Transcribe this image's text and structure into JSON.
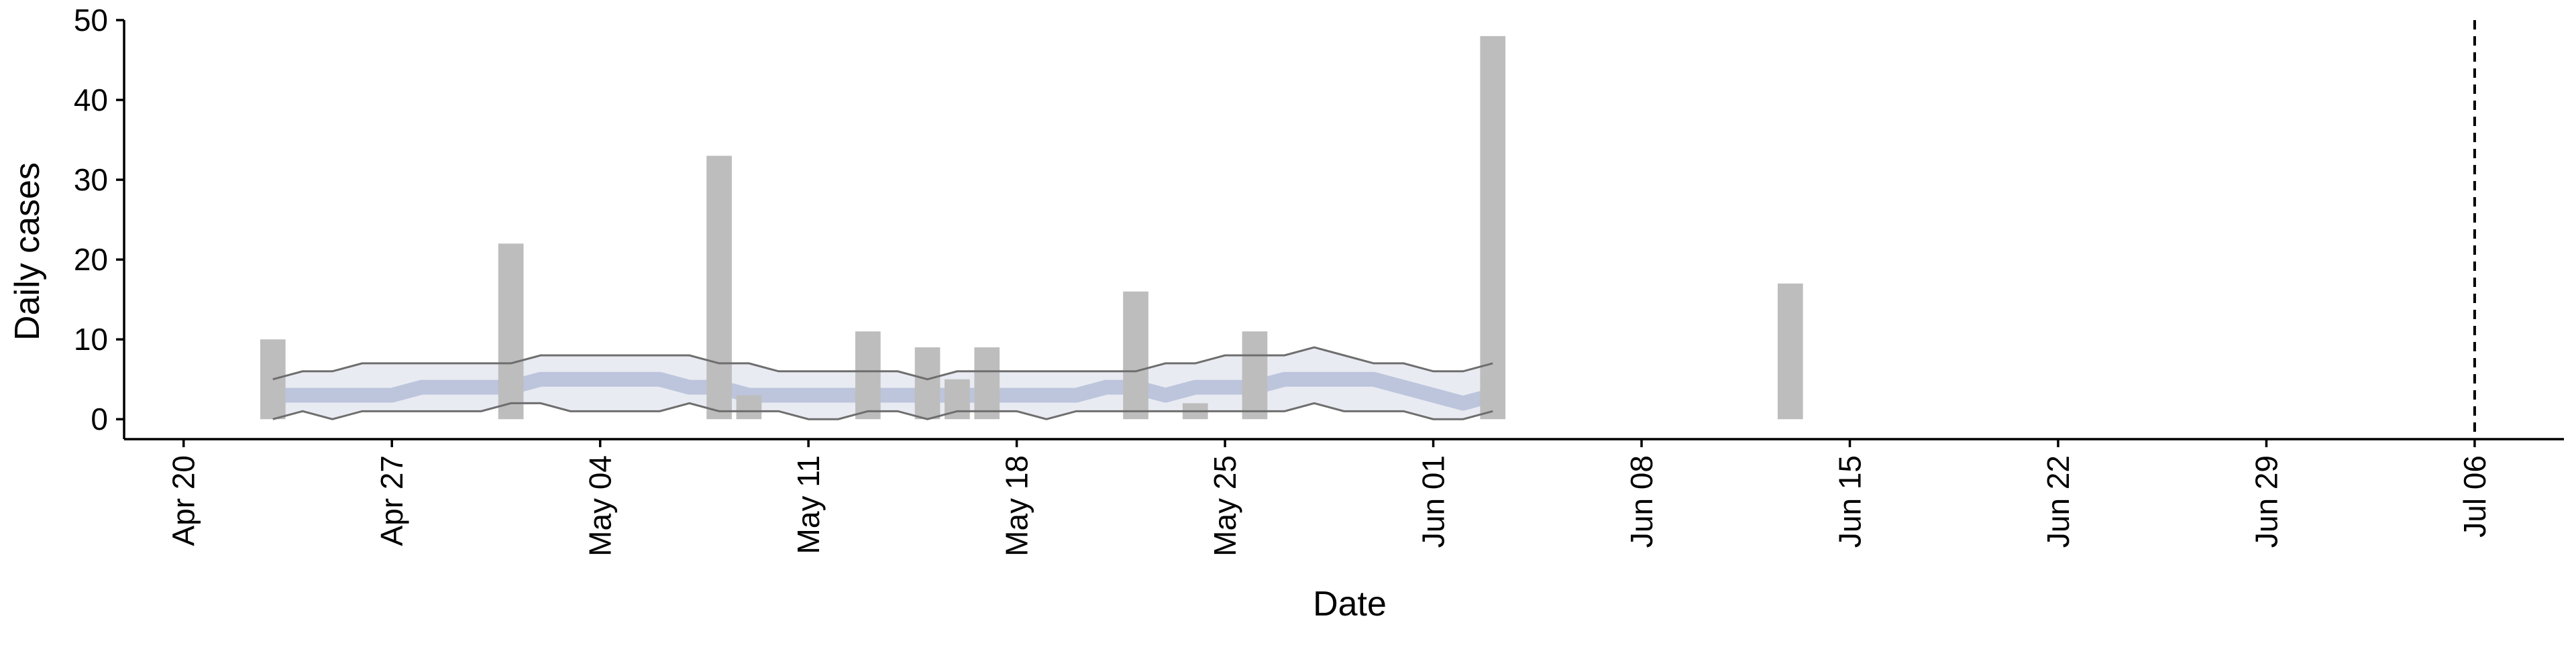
{
  "chart_data": {
    "type": "bar",
    "xlabel": "Date",
    "ylabel": "Daily cases",
    "x_axis": {
      "type": "date",
      "range": [
        "2020-04-18",
        "2020-07-09"
      ],
      "ticks": [
        {
          "date": "2020-04-20",
          "label": "Apr 20"
        },
        {
          "date": "2020-04-27",
          "label": "Apr 27"
        },
        {
          "date": "2020-05-04",
          "label": "May 04"
        },
        {
          "date": "2020-05-11",
          "label": "May 11"
        },
        {
          "date": "2020-05-18",
          "label": "May 18"
        },
        {
          "date": "2020-05-25",
          "label": "May 25"
        },
        {
          "date": "2020-06-01",
          "label": "Jun 01"
        },
        {
          "date": "2020-06-08",
          "label": "Jun 08"
        },
        {
          "date": "2020-06-15",
          "label": "Jun 15"
        },
        {
          "date": "2020-06-22",
          "label": "Jun 22"
        },
        {
          "date": "2020-06-29",
          "label": "Jun 29"
        },
        {
          "date": "2020-07-06",
          "label": "Jul 06"
        }
      ]
    },
    "y_axis": {
      "range": [
        -2.5,
        50
      ],
      "ticks": [
        0,
        10,
        20,
        30,
        40,
        50
      ]
    },
    "bars": {
      "color": "#bdbdbd",
      "points": [
        {
          "date": "2020-04-23",
          "value": 10
        },
        {
          "date": "2020-05-01",
          "value": 22
        },
        {
          "date": "2020-05-08",
          "value": 33
        },
        {
          "date": "2020-05-09",
          "value": 3
        },
        {
          "date": "2020-05-13",
          "value": 11
        },
        {
          "date": "2020-05-15",
          "value": 9
        },
        {
          "date": "2020-05-16",
          "value": 5
        },
        {
          "date": "2020-05-17",
          "value": 9
        },
        {
          "date": "2020-05-22",
          "value": 16
        },
        {
          "date": "2020-05-24",
          "value": 2
        },
        {
          "date": "2020-05-26",
          "value": 11
        },
        {
          "date": "2020-06-03",
          "value": 48
        },
        {
          "date": "2020-06-13",
          "value": 17
        }
      ]
    },
    "prediction_band": {
      "fill_color": "#e9ebf2",
      "median_color": "#bcc5dc",
      "bound_color": "#6e6e6e",
      "dates": [
        "2020-04-23",
        "2020-04-24",
        "2020-04-25",
        "2020-04-26",
        "2020-04-27",
        "2020-04-28",
        "2020-04-29",
        "2020-04-30",
        "2020-05-01",
        "2020-05-02",
        "2020-05-03",
        "2020-05-04",
        "2020-05-05",
        "2020-05-06",
        "2020-05-07",
        "2020-05-08",
        "2020-05-09",
        "2020-05-10",
        "2020-05-11",
        "2020-05-12",
        "2020-05-13",
        "2020-05-14",
        "2020-05-15",
        "2020-05-16",
        "2020-05-17",
        "2020-05-18",
        "2020-05-19",
        "2020-05-20",
        "2020-05-21",
        "2020-05-22",
        "2020-05-23",
        "2020-05-24",
        "2020-05-25",
        "2020-05-26",
        "2020-05-27",
        "2020-05-28",
        "2020-05-29",
        "2020-05-30",
        "2020-05-31",
        "2020-06-01",
        "2020-06-02",
        "2020-06-03"
      ],
      "upper": [
        5,
        6,
        6,
        7,
        7,
        7,
        7,
        7,
        7,
        8,
        8,
        8,
        8,
        8,
        8,
        7,
        7,
        6,
        6,
        6,
        6,
        6,
        5,
        6,
        6,
        6,
        6,
        6,
        6,
        6,
        7,
        7,
        8,
        8,
        8,
        9,
        8,
        7,
        7,
        6,
        6,
        7
      ],
      "median": [
        3,
        3,
        3,
        3,
        3,
        4,
        4,
        4,
        4,
        5,
        5,
        5,
        5,
        5,
        4,
        4,
        3,
        3,
        3,
        3,
        3,
        3,
        3,
        3,
        3,
        3,
        3,
        3,
        4,
        4,
        3,
        4,
        4,
        4,
        5,
        5,
        5,
        5,
        4,
        3,
        2,
        3
      ],
      "lower": [
        0,
        1,
        0,
        1,
        1,
        1,
        1,
        1,
        2,
        2,
        1,
        1,
        1,
        1,
        2,
        1,
        1,
        1,
        0,
        0,
        1,
        1,
        0,
        1,
        1,
        1,
        0,
        1,
        1,
        1,
        1,
        1,
        1,
        1,
        1,
        2,
        1,
        1,
        1,
        0,
        0,
        1
      ]
    },
    "reference_line": {
      "date": "2020-07-06",
      "style": "dashed",
      "color": "#000000"
    },
    "grid": false,
    "legend": "none"
  }
}
